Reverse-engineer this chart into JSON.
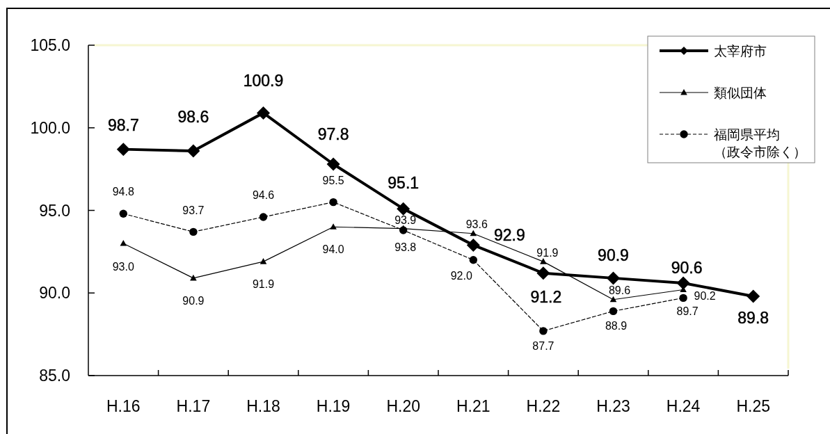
{
  "chart_data": {
    "type": "line",
    "categories": [
      "H.16",
      "H.17",
      "H.18",
      "H.19",
      "H.20",
      "H.21",
      "H.22",
      "H.23",
      "H.24",
      "H.25"
    ],
    "ylim": [
      85,
      105
    ],
    "yticks": [
      {
        "value": 85,
        "label": "85.0"
      },
      {
        "value": 90,
        "label": "90.0"
      },
      {
        "value": 95,
        "label": "95.0"
      },
      {
        "value": 100,
        "label": "100.0"
      },
      {
        "value": 105,
        "label": "105.0"
      }
    ],
    "legend": "top right",
    "series": [
      {
        "name": "太宰府市",
        "color": "#000000",
        "marker": "diamond",
        "line_style": "solid",
        "values": [
          98.7,
          98.6,
          100.9,
          97.8,
          95.1,
          92.9,
          91.2,
          90.9,
          90.6,
          89.8
        ],
        "value_labels": [
          "98.7",
          "98.6",
          "100.9",
          "97.8",
          "95.1",
          "92.9",
          "91.2",
          "90.9",
          "90.6",
          "89.8"
        ]
      },
      {
        "name": "類似団体",
        "color": "#000000",
        "marker": "triangle",
        "line_style": "solid",
        "values": [
          93.0,
          90.9,
          91.9,
          94.0,
          93.9,
          93.6,
          91.9,
          89.6,
          90.2,
          null
        ],
        "value_labels": [
          "93.0",
          "90.9",
          "91.9",
          "94.0",
          "93.9",
          "93.6",
          "91.9",
          "89.6",
          "90.2",
          null
        ]
      },
      {
        "name": "福岡県平均（政令市除く）",
        "color": "#000000",
        "marker": "circle",
        "line_style": "dashed",
        "values": [
          94.8,
          93.7,
          94.6,
          95.5,
          93.8,
          92.0,
          87.7,
          88.9,
          89.7,
          null
        ],
        "value_labels": [
          "94.8",
          "93.7",
          "94.6",
          "95.5",
          "93.8",
          "92.0",
          "87.7",
          "88.9",
          "89.7",
          null
        ]
      }
    ]
  }
}
